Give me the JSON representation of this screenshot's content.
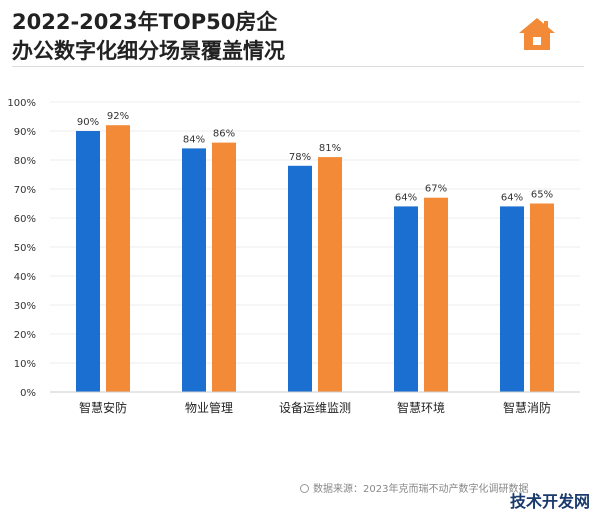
{
  "title_line1": "2022-2023年TOP50房企",
  "title_line2": "办公数字化细分场景覆盖情况",
  "source_text": "数据来源：2023年克而瑞不动产数字化调研数据",
  "watermark_text": "技术开发网",
  "colors": {
    "blue": "#1a6fd1",
    "orange": "#f28a37",
    "icon": "#f28a37",
    "grid": "#eeeeee"
  },
  "chart_data": {
    "type": "bar",
    "title": "2022-2023年TOP50房企 办公数字化细分场景覆盖情况",
    "categories": [
      "智慧安防",
      "物业管理",
      "设备运维监测",
      "智慧环境",
      "智慧消防"
    ],
    "series": [
      {
        "color": "#1a6fd1",
        "values": [
          90,
          84,
          78,
          64,
          64
        ],
        "labels": [
          "90%",
          "84%",
          "78%",
          "64%",
          "64%"
        ]
      },
      {
        "color": "#f28a37",
        "values": [
          92,
          86,
          81,
          67,
          65
        ],
        "labels": [
          "92%",
          "86%",
          "81%",
          "67%",
          "65%"
        ]
      }
    ],
    "yticks": [
      "0%",
      "10%",
      "20%",
      "30%",
      "40%",
      "50%",
      "60%",
      "70%",
      "80%",
      "90%",
      "100%"
    ],
    "ylim": [
      0,
      100
    ],
    "grid": true,
    "legend": "none"
  }
}
